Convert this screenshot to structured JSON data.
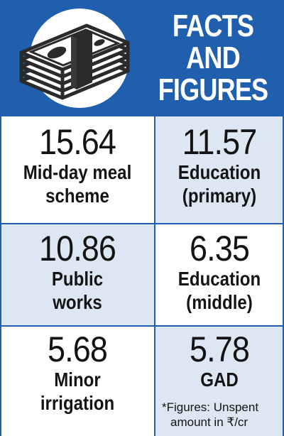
{
  "header": {
    "title_lines": [
      "FACTS",
      "AND",
      "FIGURES"
    ],
    "icon": "money-stack-icon",
    "background_color": "#1f5fae",
    "icon_color": "#2a2a2a"
  },
  "facts": [
    {
      "value": "15.64",
      "label_lines": [
        "Mid-day meal",
        "scheme"
      ],
      "shaded": false
    },
    {
      "value": "11.57",
      "label_lines": [
        "Education",
        "(primary)"
      ],
      "shaded": true
    },
    {
      "value": "10.86",
      "label_lines": [
        "Public",
        "works"
      ],
      "shaded": true
    },
    {
      "value": "6.35",
      "label_lines": [
        "Education",
        "(middle)"
      ],
      "shaded": false
    },
    {
      "value": "5.68",
      "label_lines": [
        "Minor",
        "irrigation"
      ],
      "shaded": false
    },
    {
      "value": "5.78",
      "label_lines": [
        "GAD"
      ],
      "shaded": true
    }
  ],
  "footnote_lines": [
    "*Figures: Unspent",
    "amount in ₹/cr"
  ],
  "colors": {
    "accent": "#1f5fae",
    "shaded_cell": "#dde6f3",
    "text": "#141414"
  }
}
